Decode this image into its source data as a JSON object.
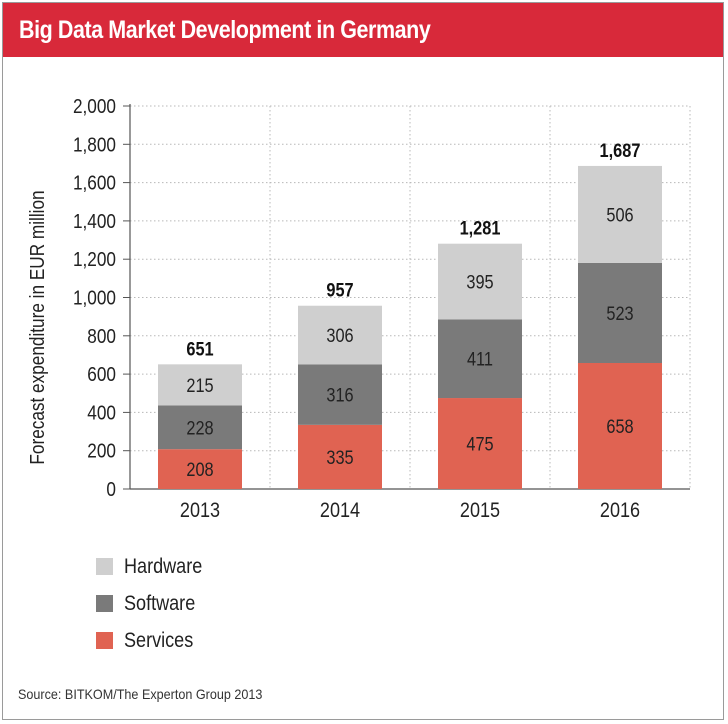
{
  "header": {
    "title": "Big Data Market Development in Germany"
  },
  "source": "Source: BITKOM/The Experton Group 2013",
  "colors": {
    "title_bg": "#d8293a",
    "hardware": "#cfcfcf",
    "software": "#7a7a7a",
    "services": "#e06352",
    "grid": "#b5b5b5"
  },
  "chart_data": {
    "type": "bar",
    "stacked": true,
    "categories": [
      "2013",
      "2014",
      "2015",
      "2016"
    ],
    "series": [
      {
        "name": "Services",
        "values": [
          208,
          335,
          475,
          658
        ],
        "color": "#e06352",
        "labels": [
          "208",
          "335",
          "475",
          "658"
        ]
      },
      {
        "name": "Software",
        "values": [
          228,
          316,
          411,
          523
        ],
        "color": "#7a7a7a",
        "labels": [
          "228",
          "316",
          "411",
          "523"
        ]
      },
      {
        "name": "Hardware",
        "values": [
          215,
          306,
          395,
          506
        ],
        "color": "#cfcfcf",
        "labels": [
          "215",
          "306",
          "395",
          "506"
        ]
      }
    ],
    "totals": [
      651,
      957,
      1281,
      1687
    ],
    "total_labels": [
      "651",
      "957",
      "1,281",
      "1,687"
    ],
    "ylabel": "Forecast expenditure in EUR million",
    "ylim": [
      0,
      2000
    ],
    "yticks": [
      0,
      200,
      400,
      600,
      800,
      1000,
      1200,
      1400,
      1600,
      1800,
      2000
    ],
    "ytick_labels": [
      "0",
      "200",
      "400",
      "600",
      "800",
      "1,000",
      "1,200",
      "1,400",
      "1,600",
      "1,800",
      "2,000"
    ],
    "legend": {
      "position": "bottom-left",
      "order": [
        "Hardware",
        "Software",
        "Services"
      ]
    },
    "grid": true
  }
}
